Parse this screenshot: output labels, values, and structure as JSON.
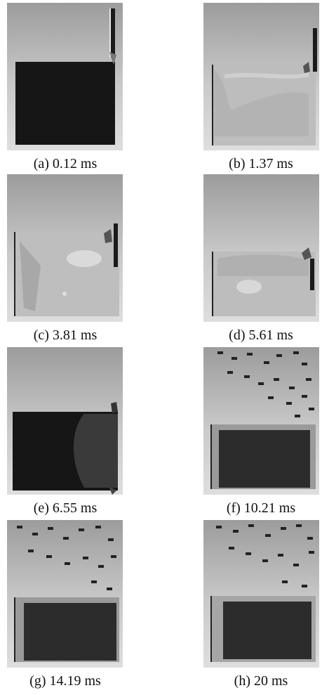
{
  "figure": {
    "panels": [
      {
        "id": "a",
        "caption": "(a) 0.12 ms",
        "state": "intact-block-with-impactor-above"
      },
      {
        "id": "b",
        "caption": "(b) 1.37 ms",
        "state": "stress-field"
      },
      {
        "id": "c",
        "caption": "(c) 3.81 ms",
        "state": "stress-field"
      },
      {
        "id": "d",
        "caption": "(d) 5.61 ms",
        "state": "stress-field"
      },
      {
        "id": "e",
        "caption": "(e) 6.55 ms",
        "state": "damage-front"
      },
      {
        "id": "f",
        "caption": "(f) 10.21 ms",
        "state": "fragmentation"
      },
      {
        "id": "g",
        "caption": "(g) 14.19 ms",
        "state": "fragmentation"
      },
      {
        "id": "h",
        "caption": "(h) 20 ms",
        "state": "fragmentation"
      }
    ]
  }
}
